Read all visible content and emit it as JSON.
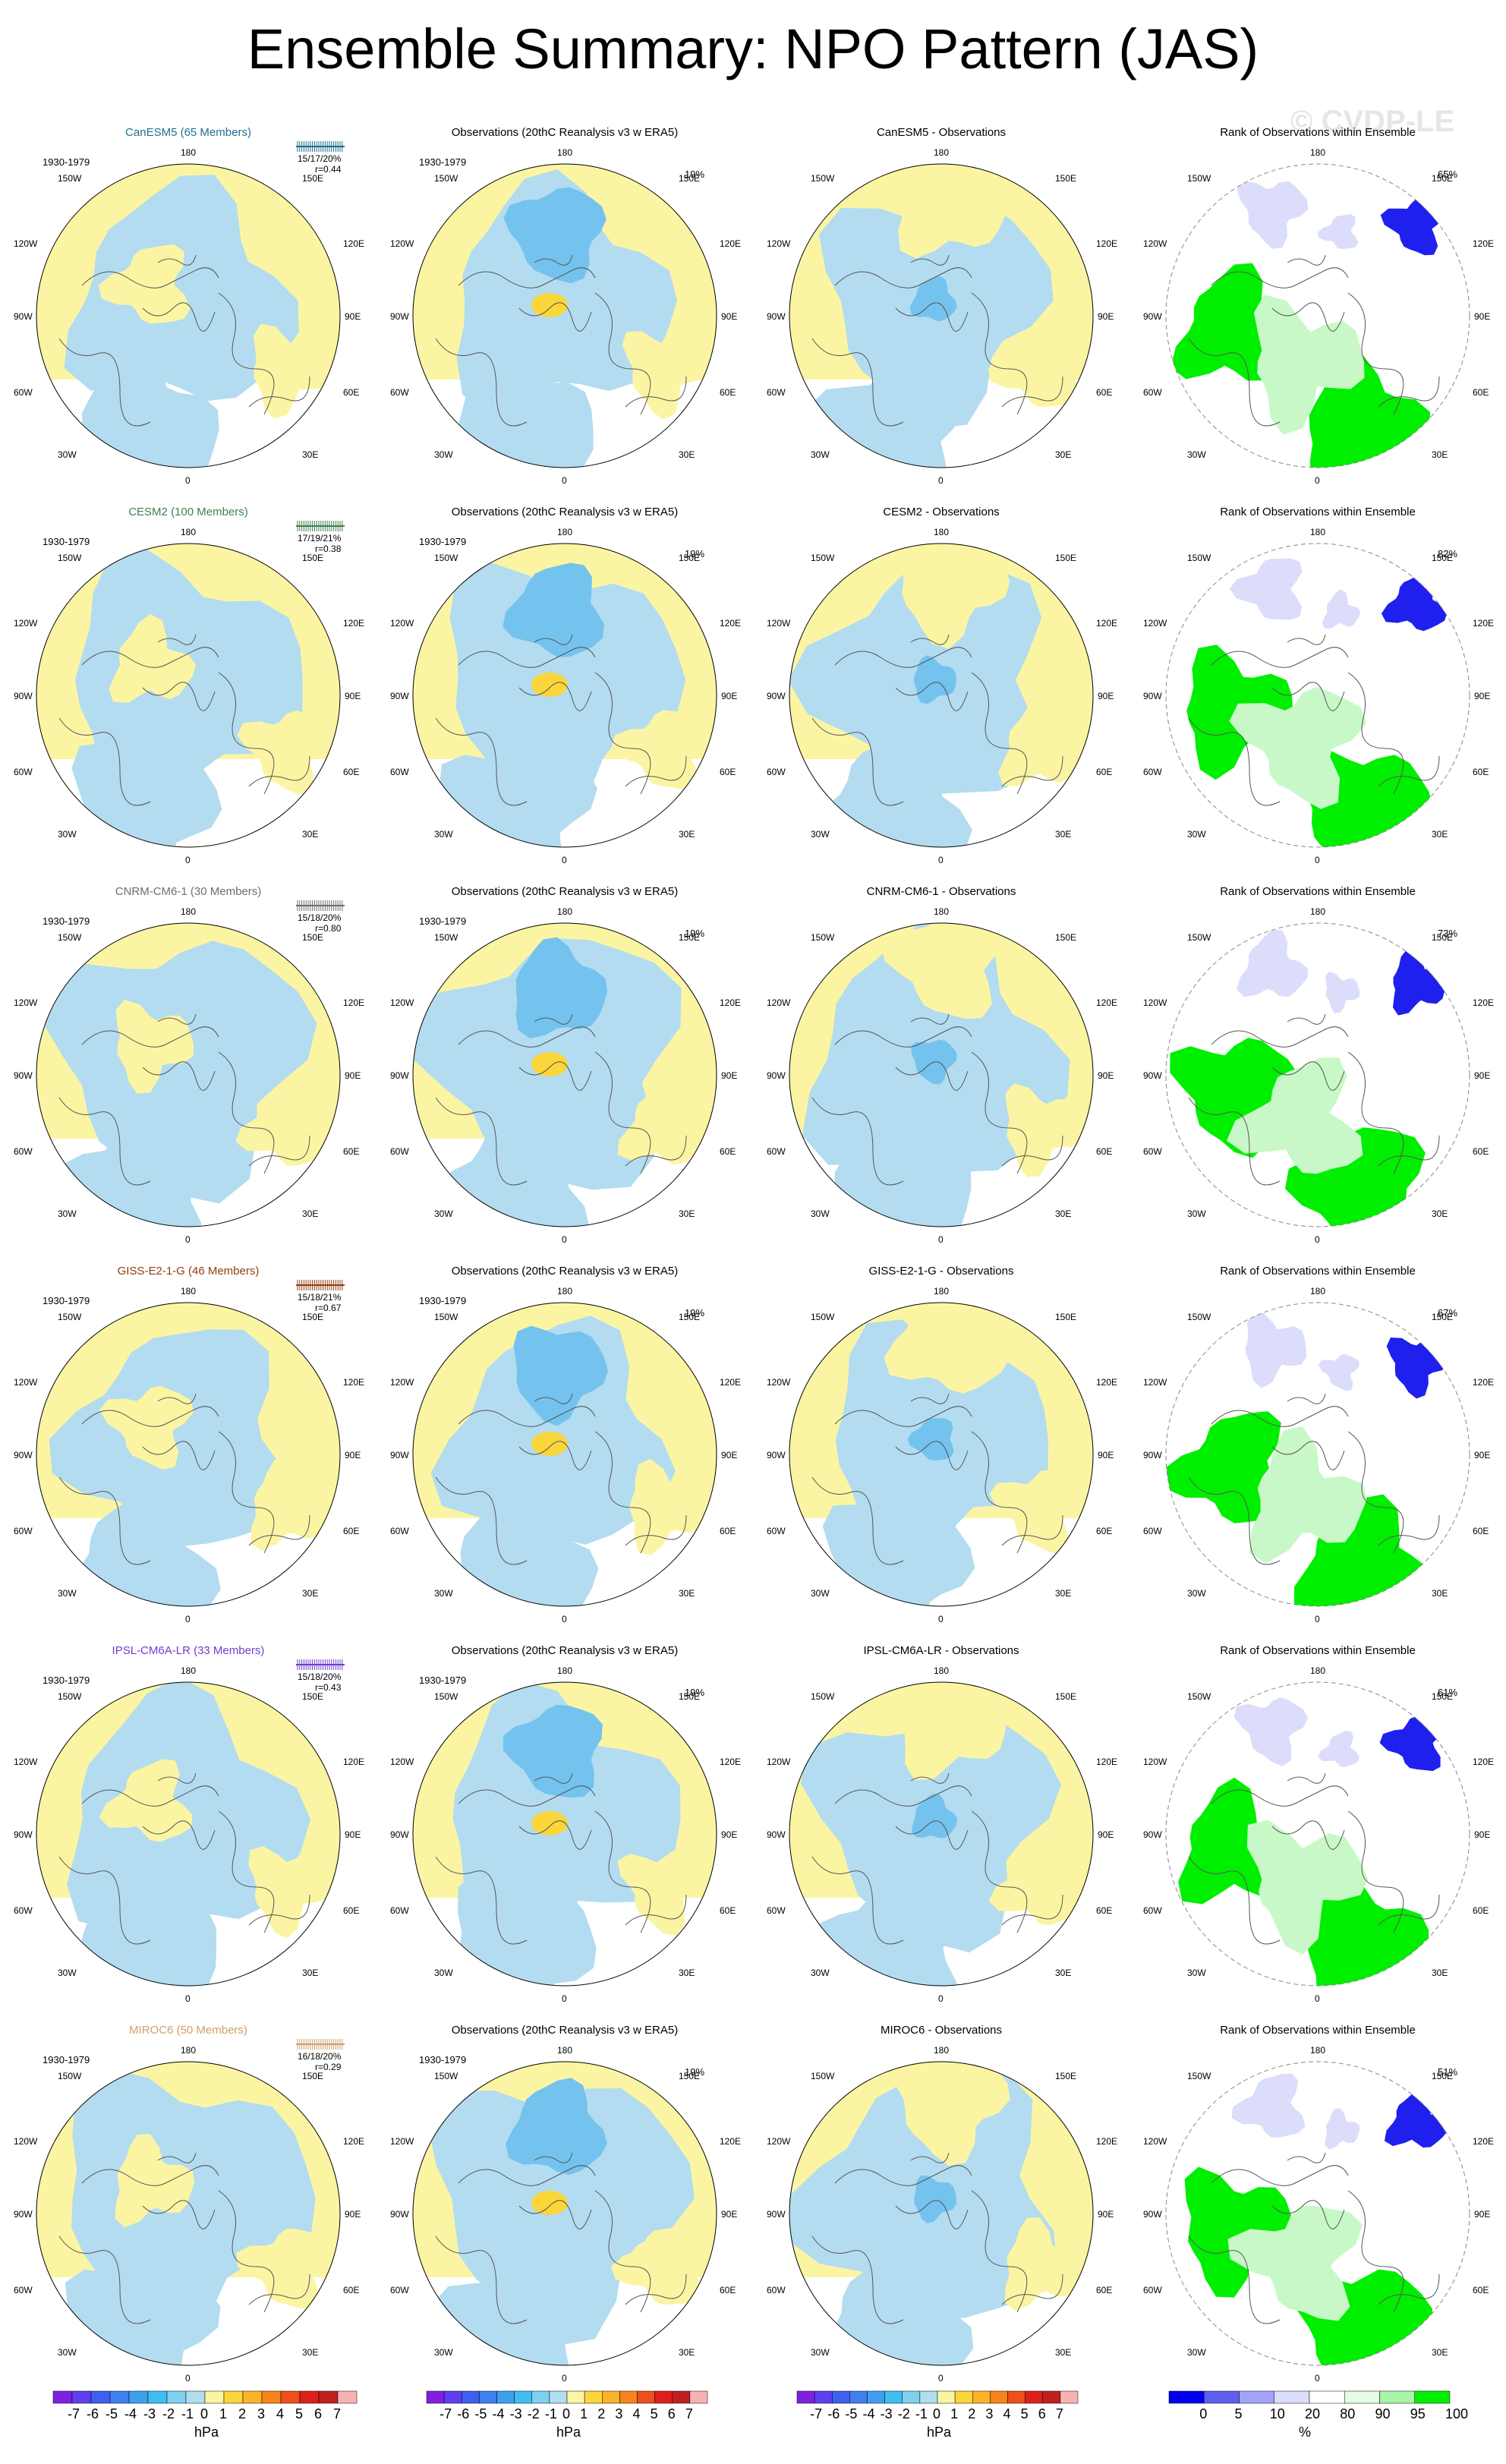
{
  "title": "Ensemble Summary: NPO Pattern (JAS)",
  "watermark": "© CVDP-LE",
  "period": "1930-1979",
  "obs_title": "Observations (20thC Reanalysis v3 w ERA5)",
  "rank_title": "Rank of Observations within Ensemble",
  "obs_pct": "19%",
  "lon_labels": {
    "top": "180",
    "top_left": "150W",
    "top_right": "150E",
    "upper_left": "120W",
    "upper_right": "120E",
    "left": "90W",
    "right": "90E",
    "lower_left": "60W",
    "lower_right": "60E",
    "bottom_left": "30W",
    "bottom_right": "30E",
    "bottom": "0"
  },
  "colors": {
    "neg_light": "#b3dcf0",
    "neg_mid": "#74c3ee",
    "pos_light": "#fbf5a3",
    "pos_mid": "#fbd63a",
    "rank_green": "#00ee00",
    "rank_green_light": "#c8f8c8",
    "rank_blue": "#1f1fee",
    "rank_blue_light": "#dcdcfb"
  },
  "rows": [
    {
      "model": "CanESM5",
      "model_title": "CanESM5 (65 Members)",
      "model_color": "#1f6f8f",
      "stats_line1": "15/17/20%",
      "stats_line2": "r=0.44",
      "diff_title": "CanESM5 - Observations",
      "rank_pct": "65%"
    },
    {
      "model": "CESM2",
      "model_title": "CESM2 (100 Members)",
      "model_color": "#3f7f4f",
      "stats_line1": "17/19/21%",
      "stats_line2": "r=0.38",
      "diff_title": "CESM2 - Observations",
      "rank_pct": "82%"
    },
    {
      "model": "CNRM-CM6-1",
      "model_title": "CNRM-CM6-1 (30 Members)",
      "model_color": "#6f6f6f",
      "stats_line1": "15/18/20%",
      "stats_line2": "r=0.80",
      "diff_title": "CNRM-CM6-1 - Observations",
      "rank_pct": "73%"
    },
    {
      "model": "GISS-E2-1-G",
      "model_title": "GISS-E2-1-G (46 Members)",
      "model_color": "#8f3f0f",
      "stats_line1": "15/18/21%",
      "stats_line2": "r=0.67",
      "diff_title": "GISS-E2-1-G - Observations",
      "rank_pct": "67%"
    },
    {
      "model": "IPSL-CM6A-LR",
      "model_title": "IPSL-CM6A-LR (33 Members)",
      "model_color": "#6f3fcf",
      "stats_line1": "15/18/20%",
      "stats_line2": "r=0.43",
      "diff_title": "IPSL-CM6A-LR - Observations",
      "rank_pct": "61%"
    },
    {
      "model": "MIROC6",
      "model_title": "MIROC6 (50 Members)",
      "model_color": "#cf9f6f",
      "stats_line1": "16/18/20%",
      "stats_line2": "r=0.29",
      "diff_title": "MIROC6 - Observations",
      "rank_pct": "51%"
    }
  ],
  "colorbar_hpa": {
    "labels": [
      "-7",
      "-6",
      "-5",
      "-4",
      "-3",
      "-2",
      "-1",
      "0",
      "1",
      "2",
      "3",
      "4",
      "5",
      "6",
      "7"
    ],
    "colors": [
      "#7f1fdf",
      "#5f3fef",
      "#3f5fef",
      "#3f7fef",
      "#3f9fef",
      "#3fbfef",
      "#7fcfef",
      "#afdfef",
      "#fbf5a3",
      "#fbd63a",
      "#fbb32a",
      "#f7831a",
      "#ef4f1a",
      "#df1f1a",
      "#bf1f1f",
      "#f7b3b3"
    ],
    "unit": "hPa"
  },
  "colorbar_rank": {
    "labels": [
      "0",
      "5",
      "10",
      "20",
      "80",
      "90",
      "95",
      "100"
    ],
    "colors": [
      "#0000ee",
      "#5f5fef",
      "#a3a3f7",
      "#dcdcfb",
      "#ffffff",
      "#e6fbe6",
      "#a8f4a8",
      "#00ee00"
    ],
    "unit": "%"
  }
}
